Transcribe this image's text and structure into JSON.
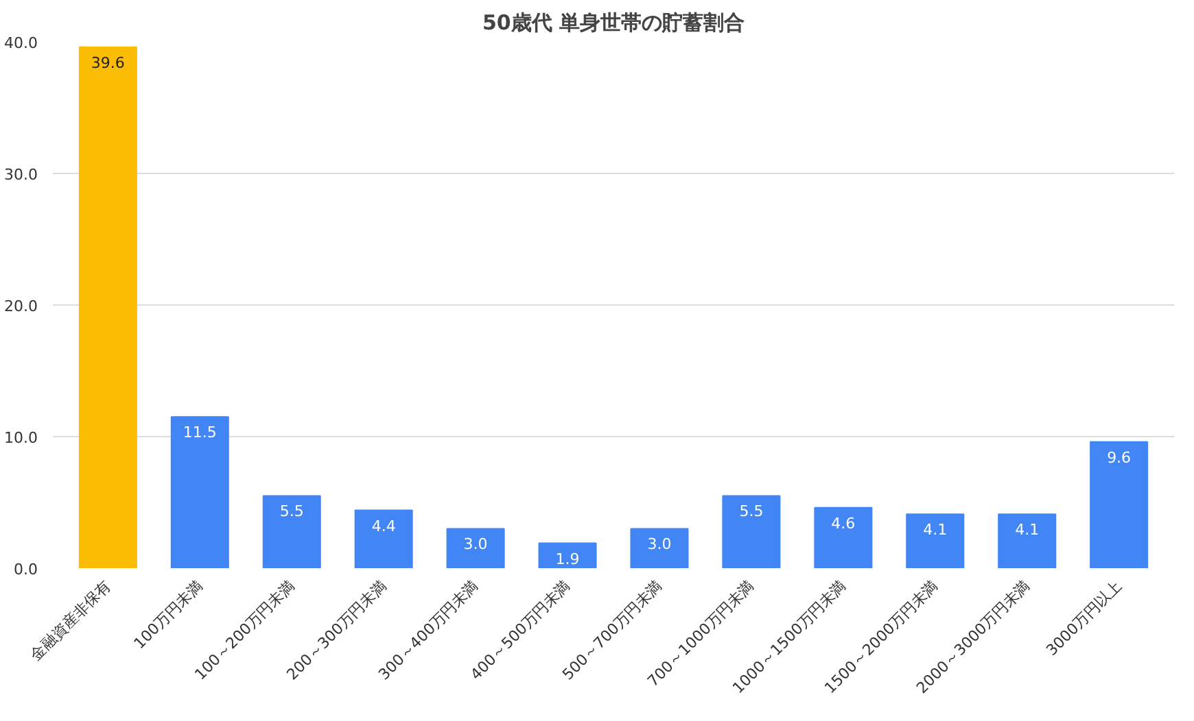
{
  "chart_data": {
    "type": "bar",
    "title": "50歳代 単身世帯の貯蓄割合",
    "categories": [
      "金融資産非保有",
      "100万円未満",
      "100～200万円未満",
      "200～300万円未満",
      "300～400万円未満",
      "400～500万円未満",
      "500～700万円未満",
      "700～1000万円未満",
      "1000～1500万円未満",
      "1500～2000万円未満",
      "2000～3000万円未満",
      "3000万円以上"
    ],
    "values": [
      39.6,
      11.5,
      5.5,
      4.4,
      3.0,
      1.9,
      3.0,
      5.5,
      4.6,
      4.1,
      4.1,
      9.6
    ],
    "colors": [
      "#fbbc04",
      "#4285f4",
      "#4285f4",
      "#4285f4",
      "#4285f4",
      "#4285f4",
      "#4285f4",
      "#4285f4",
      "#4285f4",
      "#4285f4",
      "#4285f4",
      "#4285f4"
    ],
    "ylim": [
      0,
      40
    ],
    "value_labels": [
      "39.6",
      "11.5",
      "5.5",
      "4.4",
      "3.0",
      "1.9",
      "3.0",
      "5.5",
      "4.6",
      "4.1",
      "4.1",
      "9.6"
    ],
    "yticks": [
      {
        "value": 0,
        "label": "0.0"
      },
      {
        "value": 10,
        "label": "10.0"
      },
      {
        "value": 20,
        "label": "20.0"
      },
      {
        "value": 30,
        "label": "30.0"
      },
      {
        "value": 40,
        "label": "40.0"
      }
    ],
    "grid": "y"
  }
}
